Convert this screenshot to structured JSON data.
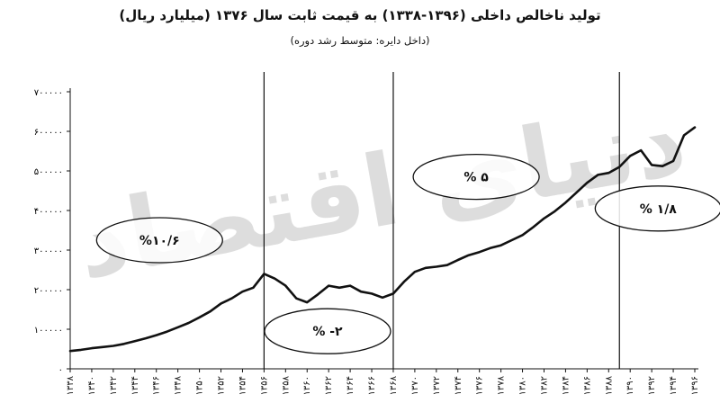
{
  "chart_data": {
    "type": "line",
    "title": "تولید ناخالص داخلی (۱۳۹۶-۱۳۳۸) به قیمت ثابت سال ۱۳۷۶ (میلیارد ریال)",
    "subtitle": "(داخل دایره: متوسط رشد دوره)",
    "xlabel": "",
    "ylabel": "",
    "ylim": [
      0,
      700000
    ],
    "xlim": [
      1338,
      1396
    ],
    "y_ticks": [
      0,
      100000,
      200000,
      300000,
      400000,
      500000,
      600000,
      700000
    ],
    "y_tick_labels": [
      "۰",
      "۱۰۰۰۰۰",
      "۲۰۰۰۰۰",
      "۳۰۰۰۰۰",
      "۴۰۰۰۰۰",
      "۵۰۰۰۰۰",
      "۶۰۰۰۰۰",
      "۷۰۰۰۰۰"
    ],
    "x_ticks": [
      1338,
      1340,
      1342,
      1344,
      1346,
      1348,
      1350,
      1352,
      1354,
      1356,
      1358,
      1360,
      1362,
      1364,
      1366,
      1368,
      1370,
      1372,
      1374,
      1376,
      1378,
      1380,
      1382,
      1384,
      1386,
      1388,
      1390,
      1392,
      1394,
      1396
    ],
    "x_tick_labels": [
      "۱۳۳۸",
      "۱۳۴۰",
      "۱۳۴۲",
      "۱۳۴۴",
      "۱۳۴۶",
      "۱۳۴۸",
      "۱۳۵۰",
      "۱۳۵۲",
      "۱۳۵۴",
      "۱۳۵۶",
      "۱۳۵۸",
      "۱۳۶۰",
      "۱۳۶۲",
      "۱۳۶۴",
      "۱۳۶۶",
      "۱۳۶۸",
      "۱۳۷۰",
      "۱۳۷۲",
      "۱۳۷۴",
      "۱۳۷۶",
      "۱۳۷۸",
      "۱۳۸۰",
      "۱۳۸۲",
      "۱۳۸۴",
      "۱۳۸۶",
      "۱۳۸۸",
      "۱۳۹۰",
      "۱۳۹۲",
      "۱۳۹۴",
      "۱۳۹۶"
    ],
    "series": [
      {
        "x": [
          1338,
          1339,
          1340,
          1341,
          1342,
          1343,
          1344,
          1345,
          1346,
          1347,
          1348,
          1349,
          1350,
          1351,
          1352,
          1353,
          1354,
          1355,
          1356,
          1357,
          1358,
          1359,
          1360,
          1361,
          1362,
          1363,
          1364,
          1365,
          1366,
          1367,
          1368,
          1369,
          1370,
          1371,
          1372,
          1373,
          1374,
          1375,
          1376,
          1377,
          1378,
          1379,
          1380,
          1381,
          1382,
          1383,
          1384,
          1385,
          1386,
          1387,
          1388,
          1389,
          1390,
          1391,
          1392,
          1393,
          1394,
          1395,
          1396
        ],
        "y": [
          45000,
          48000,
          52000,
          55000,
          58000,
          63000,
          70000,
          77000,
          85000,
          94000,
          105000,
          116000,
          130000,
          145000,
          165000,
          178000,
          195000,
          205000,
          240000,
          228000,
          210000,
          178000,
          168000,
          188000,
          210000,
          205000,
          210000,
          195000,
          190000,
          180000,
          190000,
          220000,
          245000,
          255000,
          258000,
          262000,
          275000,
          287000,
          295000,
          305000,
          312000,
          325000,
          338000,
          358000,
          380000,
          398000,
          420000,
          445000,
          470000,
          490000,
          495000,
          510000,
          538000,
          552000,
          515000,
          512000,
          525000,
          590000,
          610000
        ]
      }
    ],
    "vertical_lines": [
      1356,
      1368,
      1389
    ],
    "annotations": [
      {
        "text": "%۱۰/۶",
        "x": 1346.3,
        "y": 325000
      },
      {
        "text": "% -۲",
        "x": 1361.9,
        "y": 95000
      },
      {
        "text": "% ۵",
        "x": 1375.7,
        "y": 485000
      },
      {
        "text": "% ۱/۸",
        "x": 1392.6,
        "y": 405000
      }
    ],
    "grid": false,
    "legend": "none",
    "line_color": "#111111"
  },
  "watermark": "دنیای اقتصاد"
}
